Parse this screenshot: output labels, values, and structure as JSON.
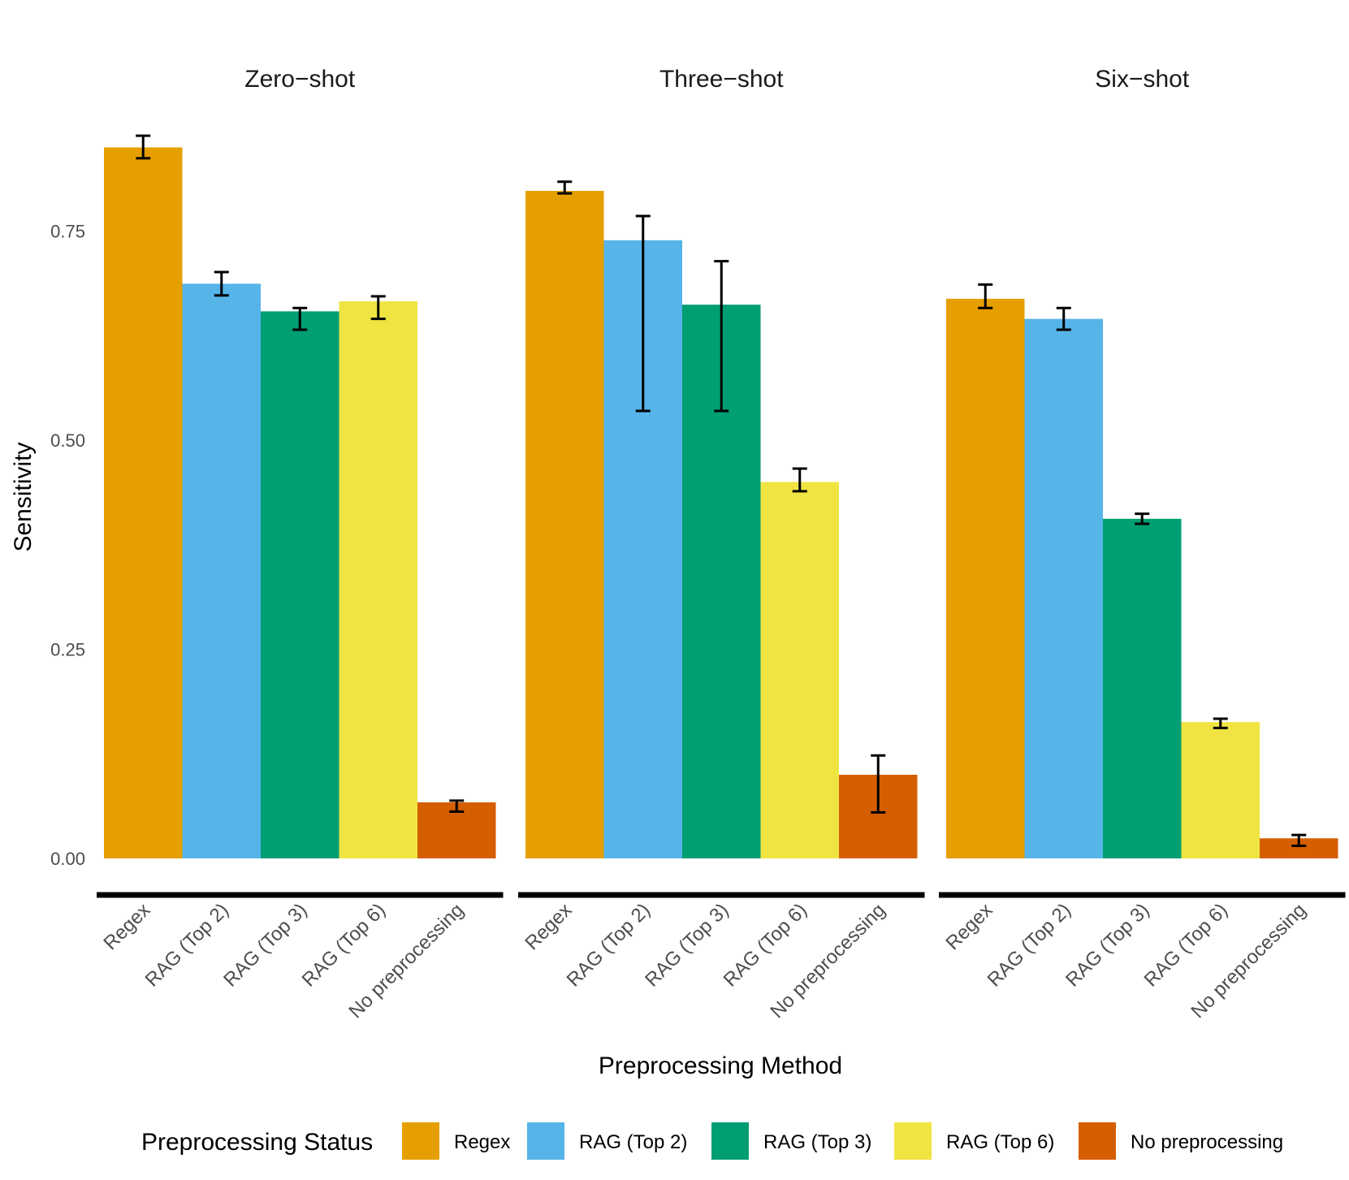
{
  "chart_data": {
    "type": "bar",
    "ylabel": "Sensitivity",
    "xlabel": "Preprocessing Method",
    "ylim": [
      0,
      0.875
    ],
    "yticks": [
      0.0,
      0.25,
      0.5,
      0.75
    ],
    "ytick_labels": [
      "0.00",
      "0.25",
      "0.50",
      "0.75"
    ],
    "categories": [
      "Regex",
      "RAG (Top 2)",
      "RAG (Top 3)",
      "RAG (Top 6)",
      "No preprocessing"
    ],
    "colors": [
      "#E69F00",
      "#56B4E9",
      "#009E73",
      "#F0E442",
      "#D55E00"
    ],
    "legend": {
      "title": "Preprocessing Status",
      "position": "bottom",
      "items": [
        "Regex",
        "RAG (Top 2)",
        "RAG (Top 3)",
        "RAG (Top 6)",
        "No preprocessing"
      ]
    },
    "facets": [
      {
        "title": "Zero−shot",
        "values": [
          0.85,
          0.687,
          0.654,
          0.666,
          0.067
        ],
        "err_low": [
          0.837,
          0.673,
          0.632,
          0.645,
          0.056
        ],
        "err_high": [
          0.864,
          0.701,
          0.658,
          0.672,
          0.069
        ]
      },
      {
        "title": "Three−shot",
        "values": [
          0.798,
          0.739,
          0.662,
          0.45,
          0.1
        ],
        "err_low": [
          0.795,
          0.535,
          0.535,
          0.439,
          0.055
        ],
        "err_high": [
          0.809,
          0.768,
          0.714,
          0.466,
          0.123
        ]
      },
      {
        "title": "Six−shot",
        "values": [
          0.669,
          0.645,
          0.406,
          0.163,
          0.024
        ],
        "err_low": [
          0.658,
          0.632,
          0.4,
          0.156,
          0.015
        ],
        "err_high": [
          0.686,
          0.658,
          0.412,
          0.167,
          0.028
        ]
      }
    ]
  }
}
